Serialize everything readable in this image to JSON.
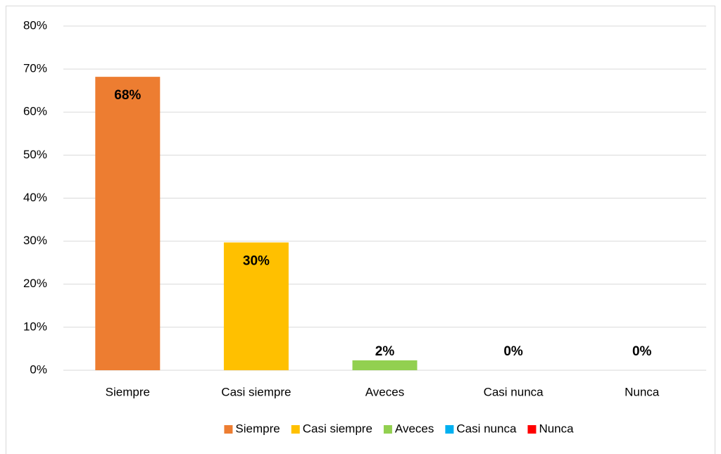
{
  "chart_data": {
    "type": "bar",
    "categories": [
      "Siempre",
      "Casi siempre",
      "Aveces",
      "Casi nunca",
      "Nunca"
    ],
    "values": [
      68.2,
      29.7,
      2.3,
      0,
      0
    ],
    "value_labels": [
      "68%",
      "30%",
      "2%",
      "0%",
      "0%"
    ],
    "colors": [
      "#ED7D31",
      "#FFC000",
      "#92D050",
      "#00B0F0",
      "#FF0000"
    ],
    "ylim": [
      0,
      80
    ],
    "yticks": [
      {
        "value": 0,
        "label": "0%"
      },
      {
        "value": 10,
        "label": "10%"
      },
      {
        "value": 20,
        "label": "20%"
      },
      {
        "value": 30,
        "label": "30%"
      },
      {
        "value": 40,
        "label": "40%"
      },
      {
        "value": 50,
        "label": "50%"
      },
      {
        "value": 60,
        "label": "60%"
      },
      {
        "value": 70,
        "label": "70%"
      },
      {
        "value": 80,
        "label": "80%"
      }
    ],
    "grid": true,
    "legend": "bottom"
  }
}
